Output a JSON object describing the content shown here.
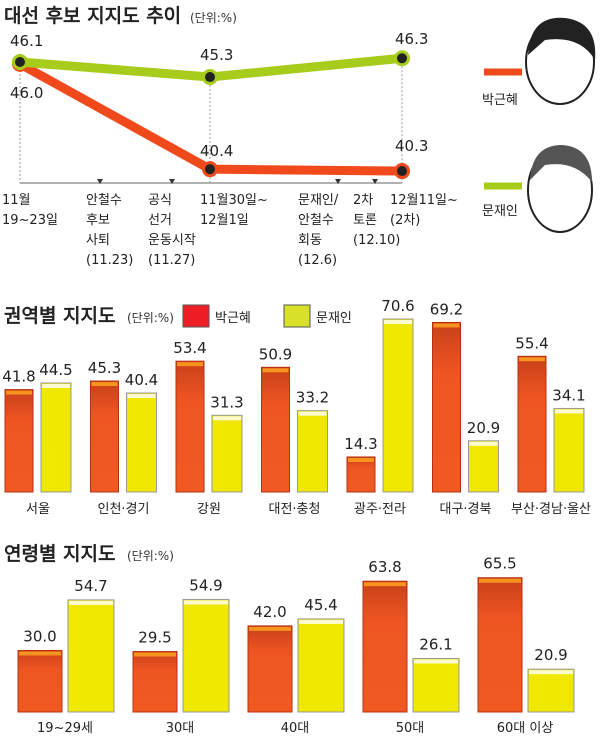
{
  "colors": {
    "park": "#f04a1c",
    "moon": "#a8cc1c",
    "park_bar": "#ee5522",
    "moon_bar": "#f0e800"
  },
  "chart_data": [
    {
      "type": "line",
      "title": "대선 후보 지지도 추이",
      "unit": "(단위:%)",
      "x": [
        "11월 19~23일",
        "11월30일~ 12월1일",
        "12월11일~ (2차)"
      ],
      "x_lines": [
        [
          "11월",
          "19~23일"
        ],
        [
          "11월30일~",
          "12월1일"
        ],
        [
          "12월11일~",
          "(2차)"
        ]
      ],
      "events": [
        [
          "안철수",
          "후보",
          "사퇴",
          "(11.23)"
        ],
        [
          "공식",
          "선거",
          "운동시작",
          "(11.27)"
        ],
        [
          "문재인/",
          "안철수",
          "회동",
          "(12.6)"
        ],
        [
          "2차",
          "토론",
          "(12.10)"
        ]
      ],
      "series": [
        {
          "name": "박근혜",
          "values": [
            46.1,
            45.3,
            46.3
          ]
        },
        {
          "name": "문재인",
          "values": [
            46.0,
            40.4,
            40.3
          ]
        }
      ],
      "labels": {
        "park": [
          "46.1",
          "45.3",
          "46.3"
        ],
        "moon": [
          "46.0",
          "40.4",
          "40.3"
        ]
      }
    },
    {
      "type": "bar",
      "title": "권역별 지지도",
      "unit": "(단위:%)",
      "categories": [
        "서울",
        "인천·경기",
        "강원",
        "대전·충청",
        "광주·전라",
        "대구·경북",
        "부산·경남·울산"
      ],
      "series": [
        {
          "name": "박근혜",
          "values": [
            41.8,
            45.3,
            53.4,
            50.9,
            14.3,
            69.2,
            55.4
          ]
        },
        {
          "name": "문재인",
          "values": [
            44.5,
            40.4,
            31.3,
            33.2,
            70.6,
            20.9,
            34.1
          ]
        }
      ],
      "legend": "top"
    },
    {
      "type": "bar",
      "title": "연령별 지지도",
      "unit": "(단위:%)",
      "categories": [
        "19~29세",
        "30대",
        "40대",
        "50대",
        "60대 이상"
      ],
      "series": [
        {
          "name": "박근혜",
          "values": [
            30.0,
            29.5,
            42.0,
            63.8,
            65.5
          ]
        },
        {
          "name": "문재인",
          "values": [
            54.7,
            54.9,
            45.4,
            26.1,
            20.9
          ]
        }
      ]
    }
  ]
}
